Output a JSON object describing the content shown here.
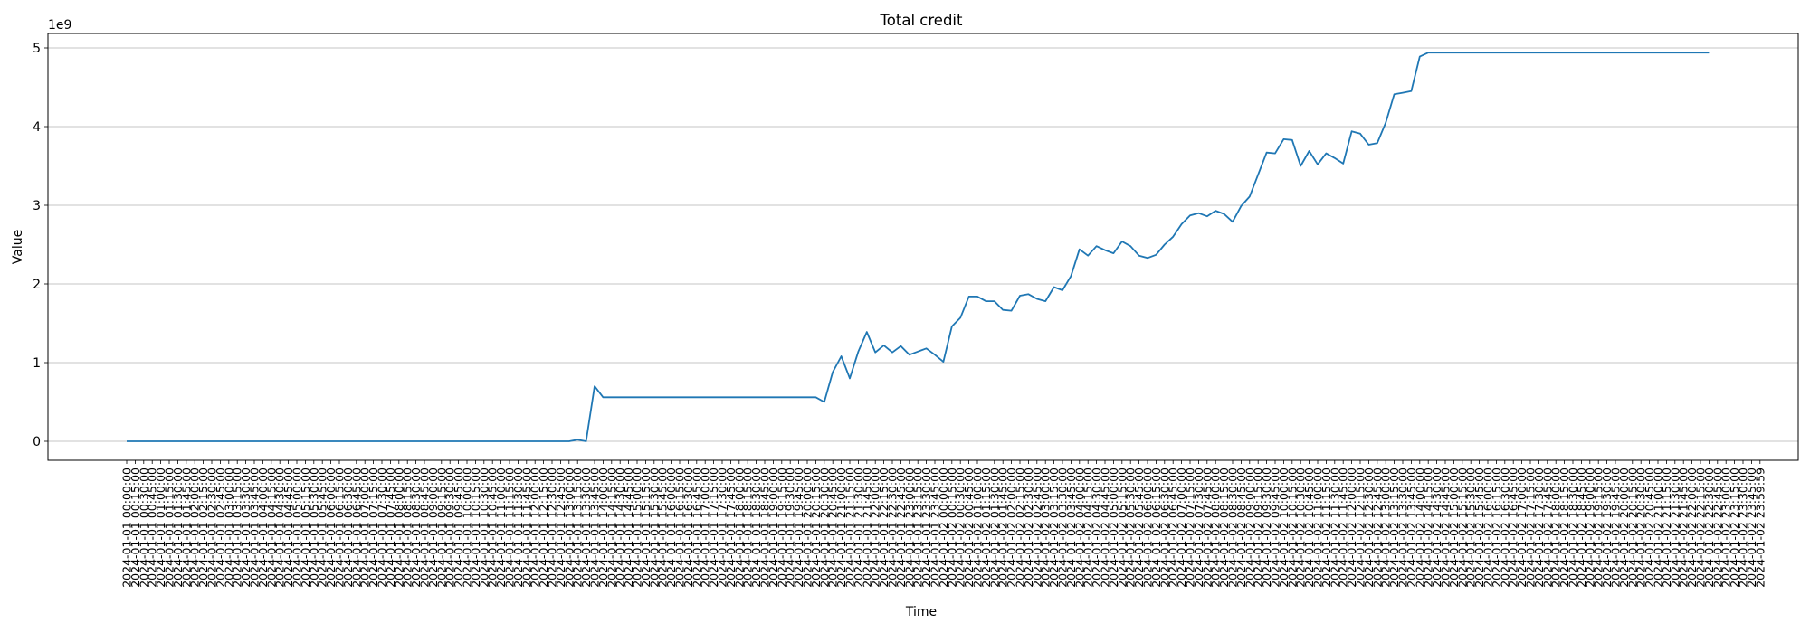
{
  "chart_data": {
    "type": "line",
    "title": "Total credit",
    "xlabel": "Time",
    "ylabel": "Value",
    "y_offset_label": "1e9",
    "ylim": [
      -0.25,
      5.2
    ],
    "yticks": [
      0,
      1,
      2,
      3,
      4,
      5
    ],
    "ytick_labels": [
      "0",
      "1",
      "2",
      "3",
      "4",
      "5"
    ],
    "grid": "horizontal",
    "series": [
      {
        "color": "#1f77b4",
        "points": [
          {
            "x": 0,
            "y": 0
          },
          {
            "x": 52,
            "y": 0
          },
          {
            "x": 53,
            "y": 0.02
          },
          {
            "x": 54,
            "y": 0
          },
          {
            "x": 55,
            "y": 0.7
          },
          {
            "x": 56,
            "y": 0.56
          },
          {
            "x": 70,
            "y": 0.56
          },
          {
            "x": 81,
            "y": 0.56
          },
          {
            "x": 82,
            "y": 0.5
          },
          {
            "x": 83,
            "y": 0.88
          },
          {
            "x": 84,
            "y": 1.08
          },
          {
            "x": 85,
            "y": 0.8
          },
          {
            "x": 86,
            "y": 1.14
          },
          {
            "x": 87,
            "y": 1.39
          },
          {
            "x": 88,
            "y": 1.13
          },
          {
            "x": 89,
            "y": 1.22
          },
          {
            "x": 90,
            "y": 1.13
          },
          {
            "x": 91,
            "y": 1.21
          },
          {
            "x": 92,
            "y": 1.1
          },
          {
            "x": 93,
            "y": 1.14
          },
          {
            "x": 94,
            "y": 1.18
          },
          {
            "x": 95,
            "y": 1.1
          },
          {
            "x": 96,
            "y": 1.01
          },
          {
            "x": 97,
            "y": 1.46
          },
          {
            "x": 98,
            "y": 1.57
          },
          {
            "x": 99,
            "y": 1.84
          },
          {
            "x": 100,
            "y": 1.84
          },
          {
            "x": 101,
            "y": 1.78
          },
          {
            "x": 102,
            "y": 1.78
          },
          {
            "x": 103,
            "y": 1.67
          },
          {
            "x": 104,
            "y": 1.66
          },
          {
            "x": 105,
            "y": 1.85
          },
          {
            "x": 106,
            "y": 1.87
          },
          {
            "x": 107,
            "y": 1.81
          },
          {
            "x": 108,
            "y": 1.78
          },
          {
            "x": 109,
            "y": 1.96
          },
          {
            "x": 110,
            "y": 1.92
          },
          {
            "x": 111,
            "y": 2.1
          },
          {
            "x": 112,
            "y": 2.44
          },
          {
            "x": 113,
            "y": 2.36
          },
          {
            "x": 114,
            "y": 2.48
          },
          {
            "x": 115,
            "y": 2.43
          },
          {
            "x": 116,
            "y": 2.39
          },
          {
            "x": 117,
            "y": 2.54
          },
          {
            "x": 118,
            "y": 2.48
          },
          {
            "x": 119,
            "y": 2.36
          },
          {
            "x": 120,
            "y": 2.33
          },
          {
            "x": 121,
            "y": 2.37
          },
          {
            "x": 122,
            "y": 2.5
          },
          {
            "x": 123,
            "y": 2.6
          },
          {
            "x": 124,
            "y": 2.76
          },
          {
            "x": 125,
            "y": 2.87
          },
          {
            "x": 126,
            "y": 2.9
          },
          {
            "x": 127,
            "y": 2.86
          },
          {
            "x": 128,
            "y": 2.93
          },
          {
            "x": 129,
            "y": 2.89
          },
          {
            "x": 130,
            "y": 2.79
          },
          {
            "x": 131,
            "y": 2.99
          },
          {
            "x": 132,
            "y": 3.11
          },
          {
            "x": 133,
            "y": 3.39
          },
          {
            "x": 134,
            "y": 3.67
          },
          {
            "x": 135,
            "y": 3.66
          },
          {
            "x": 136,
            "y": 3.84
          },
          {
            "x": 137,
            "y": 3.83
          },
          {
            "x": 138,
            "y": 3.5
          },
          {
            "x": 139,
            "y": 3.69
          },
          {
            "x": 140,
            "y": 3.52
          },
          {
            "x": 141,
            "y": 3.66
          },
          {
            "x": 142,
            "y": 3.6
          },
          {
            "x": 143,
            "y": 3.53
          },
          {
            "x": 144,
            "y": 3.94
          },
          {
            "x": 145,
            "y": 3.91
          },
          {
            "x": 146,
            "y": 3.77
          },
          {
            "x": 147,
            "y": 3.79
          },
          {
            "x": 148,
            "y": 4.05
          },
          {
            "x": 149,
            "y": 4.41
          },
          {
            "x": 150,
            "y": 4.43
          },
          {
            "x": 151,
            "y": 4.45
          },
          {
            "x": 152,
            "y": 4.89
          },
          {
            "x": 153,
            "y": 4.94
          },
          {
            "x": 170,
            "y": 4.94
          },
          {
            "x": 186,
            "y": 4.94
          }
        ]
      }
    ],
    "x_tick_labels": [
      "2024-01-01 00:00:00",
      "2024-01-01 00:15:00",
      "2024-01-01 00:30:00",
      "2024-01-01 00:45:00",
      "2024-01-01 01:00:00",
      "2024-01-01 01:15:00",
      "2024-01-01 01:30:00",
      "2024-01-01 01:45:00",
      "2024-01-01 02:00:00",
      "2024-01-01 02:15:00",
      "2024-01-01 02:30:00",
      "2024-01-01 02:45:00",
      "2024-01-01 03:00:00",
      "2024-01-01 03:15:00",
      "2024-01-01 03:30:00",
      "2024-01-01 03:45:00",
      "2024-01-01 04:00:00",
      "2024-01-01 04:15:00",
      "2024-01-01 04:30:00",
      "2024-01-01 04:45:00",
      "2024-01-01 05:00:00",
      "2024-01-01 05:15:00",
      "2024-01-01 05:30:00",
      "2024-01-01 05:45:00",
      "2024-01-01 06:00:00",
      "2024-01-01 06:15:00",
      "2024-01-01 06:30:00",
      "2024-01-01 06:45:00",
      "2024-01-01 07:00:00",
      "2024-01-01 07:15:00",
      "2024-01-01 07:30:00",
      "2024-01-01 07:45:00",
      "2024-01-01 08:00:00",
      "2024-01-01 08:15:00",
      "2024-01-01 08:30:00",
      "2024-01-01 08:45:00",
      "2024-01-01 09:00:00",
      "2024-01-01 09:15:00",
      "2024-01-01 09:30:00",
      "2024-01-01 09:45:00",
      "2024-01-01 10:00:00",
      "2024-01-01 10:15:00",
      "2024-01-01 10:30:00",
      "2024-01-01 10:45:00",
      "2024-01-01 11:00:00",
      "2024-01-01 11:15:00",
      "2024-01-01 11:30:00",
      "2024-01-01 11:45:00",
      "2024-01-01 12:00:00",
      "2024-01-01 12:15:00",
      "2024-01-01 12:30:00",
      "2024-01-01 12:45:00",
      "2024-01-01 13:00:00",
      "2024-01-01 13:15:00",
      "2024-01-01 13:30:00",
      "2024-01-01 13:45:00",
      "2024-01-01 14:00:00",
      "2024-01-01 14:15:00",
      "2024-01-01 14:30:00",
      "2024-01-01 14:45:00",
      "2024-01-01 15:00:00",
      "2024-01-01 15:15:00",
      "2024-01-01 15:30:00",
      "2024-01-01 15:45:00",
      "2024-01-01 16:00:00",
      "2024-01-01 16:15:00",
      "2024-01-01 16:30:00",
      "2024-01-01 16:45:00",
      "2024-01-01 17:00:00",
      "2024-01-01 17:15:00",
      "2024-01-01 17:30:00",
      "2024-01-01 17:45:00",
      "2024-01-01 18:00:00",
      "2024-01-01 18:15:00",
      "2024-01-01 18:30:00",
      "2024-01-01 18:45:00",
      "2024-01-01 19:00:00",
      "2024-01-01 19:15:00",
      "2024-01-01 19:30:00",
      "2024-01-01 19:45:00",
      "2024-01-01 20:00:00",
      "2024-01-01 20:15:00",
      "2024-01-01 20:30:00",
      "2024-01-01 20:45:00",
      "2024-01-01 21:00:00",
      "2024-01-01 21:15:00",
      "2024-01-01 21:30:00",
      "2024-01-01 21:45:00",
      "2024-01-01 22:00:00",
      "2024-01-01 22:15:00",
      "2024-01-01 22:30:00",
      "2024-01-01 22:45:00",
      "2024-01-01 23:00:00",
      "2024-01-01 23:15:00",
      "2024-01-01 23:30:00",
      "2024-01-01 23:45:00",
      "2024-01-02 00:00:00",
      "2024-01-02 00:15:00",
      "2024-01-02 00:30:00",
      "2024-01-02 00:45:00",
      "2024-01-02 01:00:00",
      "2024-01-02 01:15:00",
      "2024-01-02 01:30:00",
      "2024-01-02 01:45:00",
      "2024-01-02 02:00:00",
      "2024-01-02 02:15:00",
      "2024-01-02 02:30:00",
      "2024-01-02 02:45:00",
      "2024-01-02 03:00:00",
      "2024-01-02 03:15:00",
      "2024-01-02 03:30:00",
      "2024-01-02 03:45:00",
      "2024-01-02 04:00:00",
      "2024-01-02 04:15:00",
      "2024-01-02 04:30:00",
      "2024-01-02 04:45:00",
      "2024-01-02 05:00:00",
      "2024-01-02 05:15:00",
      "2024-01-02 05:30:00",
      "2024-01-02 05:45:00",
      "2024-01-02 06:00:00",
      "2024-01-02 06:15:00",
      "2024-01-02 06:30:00",
      "2024-01-02 06:45:00",
      "2024-01-02 07:00:00",
      "2024-01-02 07:15:00",
      "2024-01-02 07:30:00",
      "2024-01-02 07:45:00",
      "2024-01-02 08:00:00",
      "2024-01-02 08:15:00",
      "2024-01-02 08:30:00",
      "2024-01-02 08:45:00",
      "2024-01-02 09:00:00",
      "2024-01-02 09:15:00",
      "2024-01-02 09:30:00",
      "2024-01-02 09:45:00",
      "2024-01-02 10:00:00",
      "2024-01-02 10:15:00",
      "2024-01-02 10:30:00",
      "2024-01-02 10:45:00",
      "2024-01-02 11:00:00",
      "2024-01-02 11:15:00",
      "2024-01-02 11:30:00",
      "2024-01-02 11:45:00",
      "2024-01-02 12:00:00",
      "2024-01-02 12:15:00",
      "2024-01-02 12:30:00",
      "2024-01-02 12:45:00",
      "2024-01-02 13:00:00",
      "2024-01-02 13:15:00",
      "2024-01-02 13:30:00",
      "2024-01-02 13:45:00",
      "2024-01-02 14:00:00",
      "2024-01-02 14:15:00",
      "2024-01-02 14:30:00",
      "2024-01-02 14:45:00",
      "2024-01-02 15:00:00",
      "2024-01-02 15:15:00",
      "2024-01-02 15:30:00",
      "2024-01-02 15:45:00",
      "2024-01-02 16:00:00",
      "2024-01-02 16:15:00",
      "2024-01-02 16:30:00",
      "2024-01-02 16:45:00",
      "2024-01-02 17:00:00",
      "2024-01-02 17:15:00",
      "2024-01-02 17:30:00",
      "2024-01-02 17:45:00",
      "2024-01-02 18:00:00",
      "2024-01-02 18:15:00",
      "2024-01-02 18:30:00",
      "2024-01-02 18:45:00",
      "2024-01-02 19:00:00",
      "2024-01-02 19:15:00",
      "2024-01-02 19:30:00",
      "2024-01-02 19:45:00",
      "2024-01-02 20:00:00",
      "2024-01-02 20:15:00",
      "2024-01-02 20:30:00",
      "2024-01-02 20:45:00",
      "2024-01-02 21:00:00",
      "2024-01-02 21:15:00",
      "2024-01-02 21:30:00",
      "2024-01-02 21:45:00",
      "2024-01-02 22:00:00",
      "2024-01-02 22:15:00",
      "2024-01-02 22:30:00",
      "2024-01-02 22:45:00",
      "2024-01-02 23:00:00",
      "2024-01-02 23:15:00",
      "2024-01-02 23:30:00",
      "2024-01-02 23:45:00",
      "2024-01-02 23:59:59"
    ]
  }
}
